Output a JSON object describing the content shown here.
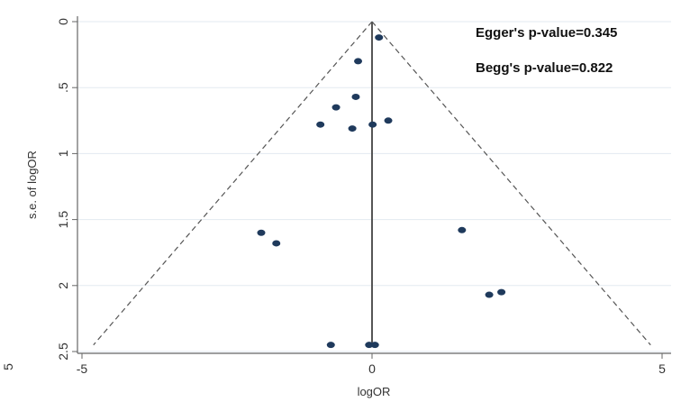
{
  "chart_data": {
    "type": "scatter",
    "title": "",
    "xlabel": "logOR",
    "ylabel": "s.e. of logOR",
    "xlim": [
      -5,
      5
    ],
    "ylim": [
      2.5,
      0
    ],
    "y_reversed": true,
    "x_ticks": [
      "-5",
      "0",
      "5"
    ],
    "y_ticks": [
      "0",
      ".5",
      "1",
      "1.5",
      "2",
      "2.5"
    ],
    "stray_tick": "5",
    "grid": "horizontal",
    "funnel_apex": {
      "x": 0,
      "y": 0
    },
    "funnel_base_se": 2.45,
    "annotations": [
      "Egger's p-value=0.345",
      "Begg's p-value=0.822"
    ],
    "points": [
      {
        "x": 0.12,
        "y": 0.12
      },
      {
        "x": -0.24,
        "y": 0.3
      },
      {
        "x": -0.28,
        "y": 0.57
      },
      {
        "x": -0.62,
        "y": 0.65
      },
      {
        "x": -0.89,
        "y": 0.78
      },
      {
        "x": -0.34,
        "y": 0.81
      },
      {
        "x": 0.01,
        "y": 0.78
      },
      {
        "x": 0.28,
        "y": 0.75
      },
      {
        "x": -1.91,
        "y": 1.6
      },
      {
        "x": -1.65,
        "y": 1.68
      },
      {
        "x": 1.55,
        "y": 1.58
      },
      {
        "x": 2.02,
        "y": 2.07
      },
      {
        "x": 2.23,
        "y": 2.05
      },
      {
        "x": -0.71,
        "y": 2.45
      },
      {
        "x": -0.05,
        "y": 2.45
      },
      {
        "x": 0.05,
        "y": 2.45
      }
    ],
    "colors": {
      "point": "#1f3a5c",
      "funnel": "#555555",
      "grid": "#e3eaf0",
      "axis": "#666666",
      "center_line": "#555555"
    }
  }
}
